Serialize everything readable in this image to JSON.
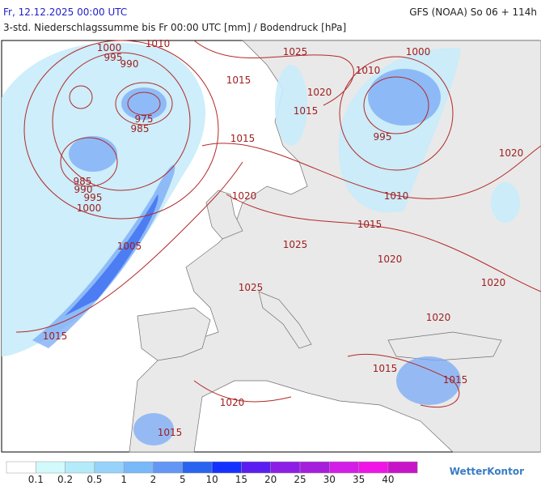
{
  "header": {
    "left": "Fr, 12.12.2025 00:00 UTC",
    "right": "GFS (NOAA) So 06 + 114h",
    "subtitle": "3-std. Niederschlagssumme bis Fr 00:00 UTC [mm] / Bodendruck [hPa]"
  },
  "isobar_labels": [
    1000,
    995,
    990,
    1010,
    975,
    985,
    985,
    990,
    995,
    1000,
    1025,
    1015,
    1020,
    1015,
    1015,
    1010,
    1000,
    995,
    1020,
    1020,
    1010,
    1015,
    1005,
    1025,
    1020,
    1020,
    1025,
    1020,
    1015,
    1015,
    1015,
    1020,
    1015
  ],
  "legend": {
    "values": [
      0.1,
      0.2,
      0.5,
      1,
      2,
      5,
      10,
      15,
      20,
      25,
      30,
      35,
      40
    ],
    "colors": [
      "#ffffff",
      "#d2fafc",
      "#b4ebfa",
      "#96d2fa",
      "#78b9fa",
      "#6496f5",
      "#2864f0",
      "#1432ff",
      "#5a1ef0",
      "#8c1ee6",
      "#a51edc",
      "#d21ee6",
      "#f014e6",
      "#c814c8"
    ]
  },
  "logo": "WetterKontor"
}
